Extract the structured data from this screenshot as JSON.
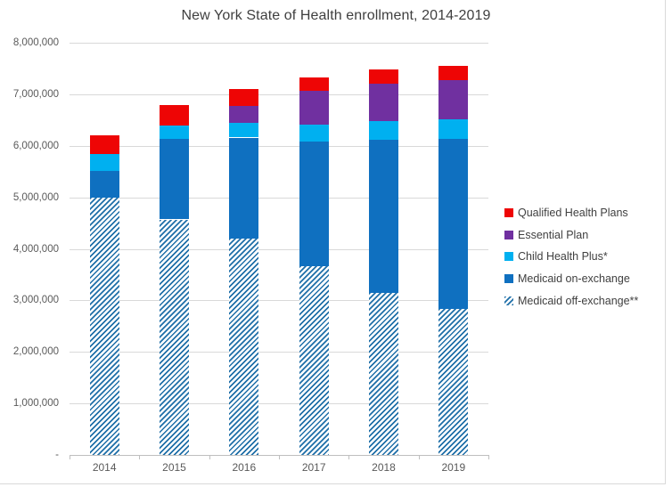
{
  "chart_data": {
    "type": "bar",
    "stacked": true,
    "title": "New York State of Health enrollment, 2014-2019",
    "categories": [
      "2014",
      "2015",
      "2016",
      "2017",
      "2018",
      "2019"
    ],
    "series": [
      {
        "name": "Medicaid off-exchange**",
        "color": "#1f6fa8",
        "pattern": "diagonal-hatch",
        "values": [
          5000000,
          4570000,
          4200000,
          3660000,
          3150000,
          2830000
        ]
      },
      {
        "name": "Medicaid on-exchange",
        "color": "#0f70c0",
        "pattern": "solid",
        "values": [
          510000,
          1560000,
          1960000,
          2420000,
          2970000,
          3300000
        ]
      },
      {
        "name": "Child Health Plus*",
        "color": "#00b0f0",
        "pattern": "solid",
        "values": [
          330000,
          270000,
          280000,
          330000,
          360000,
          380000
        ]
      },
      {
        "name": "Essential Plan",
        "color": "#7030a0",
        "pattern": "solid",
        "values": [
          0,
          0,
          330000,
          650000,
          730000,
          770000
        ]
      },
      {
        "name": "Qualified Health Plans",
        "color": "#ee0505",
        "pattern": "solid",
        "values": [
          360000,
          400000,
          330000,
          270000,
          270000,
          280000
        ]
      }
    ],
    "totals": [
      6200000,
      6800000,
      7100000,
      7330000,
      7480000,
      7560000
    ],
    "y_axis": {
      "min": 0,
      "max": 8000000,
      "tick_interval": 1000000,
      "tick_labels_bottom_to_top": [
        "-",
        "1,000,000",
        "2,000,000",
        "3,000,000",
        "4,000,000",
        "5,000,000",
        "6,000,000",
        "7,000,000",
        "8,000,000"
      ]
    },
    "legend_position": "right",
    "legend_order_top_to_bottom": [
      "Qualified Health Plans",
      "Essential Plan",
      "Child Health Plus*",
      "Medicaid on-exchange",
      "Medicaid off-exchange**"
    ],
    "gridlines": true,
    "grid_color": "#d9d9d9",
    "axis_line_color": "#bfbfbf"
  }
}
